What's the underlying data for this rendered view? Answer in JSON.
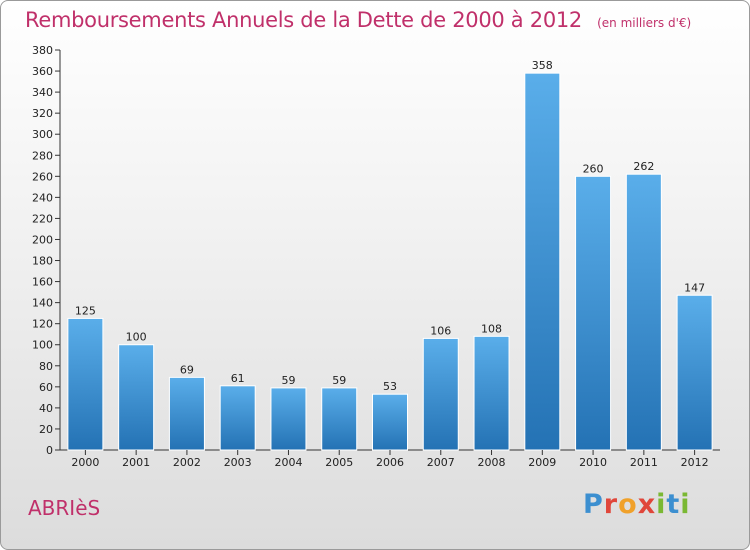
{
  "title": "Remboursements Annuels de la Dette de 2000 à 2012",
  "unit": "(en milliers d'€)",
  "commune": "ABRIèS",
  "logo_text": "Proxiti",
  "colors": {
    "bar_light": "#5aaeea",
    "bar_dark": "#2472b4",
    "title": "#c0306a"
  },
  "chart_data": {
    "type": "bar",
    "categories": [
      "2000",
      "2001",
      "2002",
      "2003",
      "2004",
      "2005",
      "2006",
      "2007",
      "2008",
      "2009",
      "2010",
      "2011",
      "2012"
    ],
    "values": [
      125,
      100,
      69,
      61,
      59,
      59,
      53,
      106,
      108,
      358,
      260,
      262,
      147
    ],
    "ylim": [
      0,
      380
    ],
    "ytick_step": 20,
    "grid": false,
    "legend": "none"
  }
}
